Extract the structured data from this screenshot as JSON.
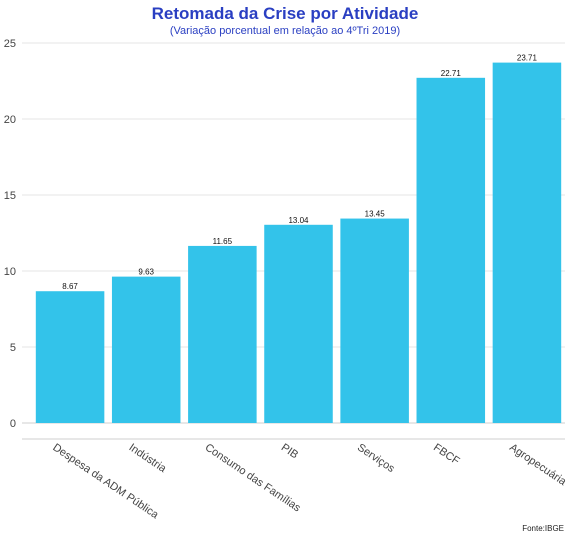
{
  "chart_data": {
    "type": "bar",
    "title": "Retomada da Crise por Atividade",
    "subtitle": "(Variação porcentual em relação ao 4ºTri 2019)",
    "categories": [
      "Despesa da ADM Pública",
      "Indústria",
      "Consumo das Famílias",
      "PIB",
      "Serviços",
      "FBCF",
      "Agropecuária"
    ],
    "values": [
      8.67,
      9.63,
      11.65,
      13.04,
      13.45,
      22.71,
      23.71
    ],
    "data_labels": [
      "8.67",
      "9.63",
      "11.65",
      "13.04",
      "13.45",
      "22.71",
      "23.71"
    ],
    "ylim": [
      0,
      25
    ],
    "yticks": [
      0,
      5,
      10,
      15,
      20,
      25
    ],
    "grid": true,
    "bar_color": "#33c3ea",
    "title_color": "#2a3fc2"
  },
  "source": "Fonte:IBGE"
}
